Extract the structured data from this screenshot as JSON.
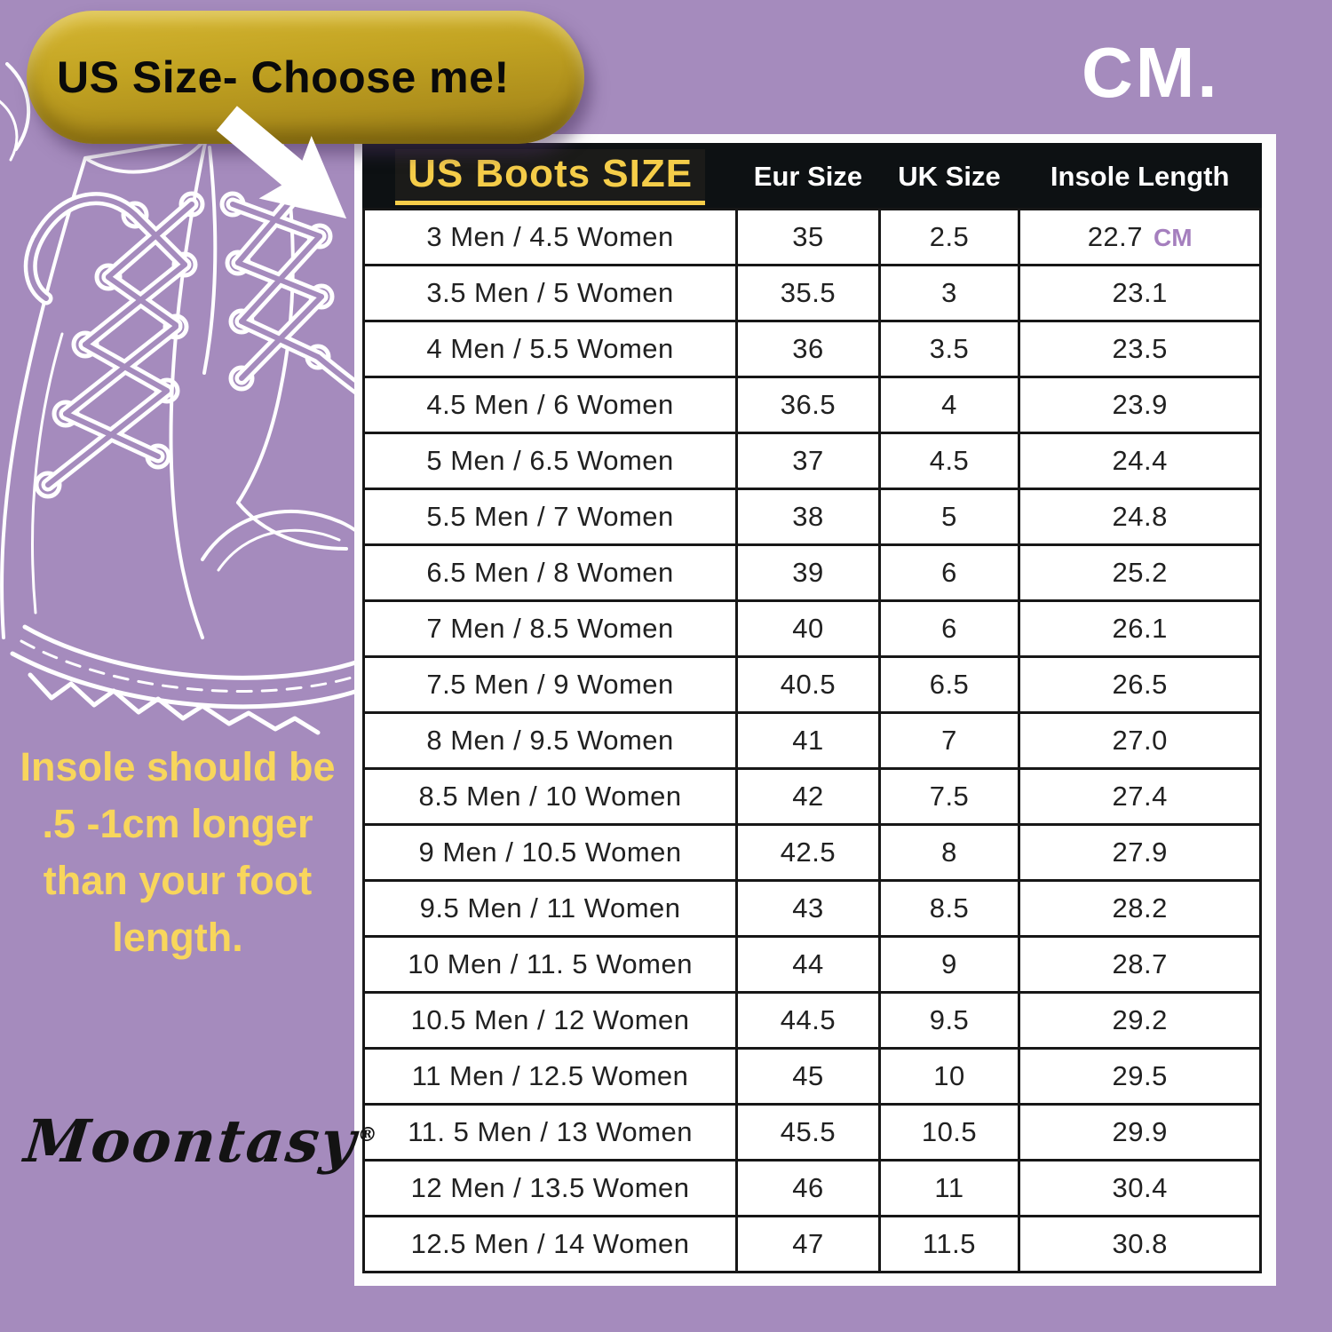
{
  "canvas": {
    "background_color": "#A58BBD"
  },
  "callout": {
    "label": "US Size- Choose me!",
    "bg_color": "#BC9C1D",
    "text_color": "#0A0A0A"
  },
  "unit_label": {
    "text": "CM."
  },
  "side_note": {
    "text": "Insole should be .5 -1cm longer than your foot length.",
    "color": "#F8D65C"
  },
  "brand": {
    "name": "Moontasy",
    "mark": "®"
  },
  "icons": {
    "arrow": "arrow-pointing-to-table-icon",
    "boots": "lace-up-boots-line-art"
  },
  "chart_data": {
    "type": "table",
    "title": "US Boots SIZE",
    "columns": [
      "US Boots SIZE",
      "Eur Size",
      "UK Size",
      "Insole Length"
    ],
    "first_row_unit": "CM",
    "rows": [
      [
        "3 Men / 4.5 Women",
        "35",
        "2.5",
        "22.7"
      ],
      [
        "3.5 Men / 5 Women",
        "35.5",
        "3",
        "23.1"
      ],
      [
        "4 Men / 5.5 Women",
        "36",
        "3.5",
        "23.5"
      ],
      [
        "4.5 Men / 6 Women",
        "36.5",
        "4",
        "23.9"
      ],
      [
        "5 Men / 6.5 Women",
        "37",
        "4.5",
        "24.4"
      ],
      [
        "5.5 Men / 7 Women",
        "38",
        "5",
        "24.8"
      ],
      [
        "6.5 Men / 8 Women",
        "39",
        "6",
        "25.2"
      ],
      [
        "7 Men / 8.5 Women",
        "40",
        "6",
        "26.1"
      ],
      [
        "7.5 Men / 9 Women",
        "40.5",
        "6.5",
        "26.5"
      ],
      [
        "8 Men / 9.5 Women",
        "41",
        "7",
        "27.0"
      ],
      [
        "8.5 Men / 10 Women",
        "42",
        "7.5",
        "27.4"
      ],
      [
        "9 Men / 10.5 Women",
        "42.5",
        "8",
        "27.9"
      ],
      [
        "9.5 Men / 11 Women",
        "43",
        "8.5",
        "28.2"
      ],
      [
        "10 Men / 11. 5 Women",
        "44",
        "9",
        "28.7"
      ],
      [
        "10.5 Men / 12 Women",
        "44.5",
        "9.5",
        "29.2"
      ],
      [
        "11 Men / 12.5 Women",
        "45",
        "10",
        "29.5"
      ],
      [
        "11. 5 Men / 13 Women",
        "45.5",
        "10.5",
        "29.9"
      ],
      [
        "12 Men / 13.5 Women",
        "46",
        "11",
        "30.4"
      ],
      [
        "12.5 Men / 14 Women",
        "47",
        "11.5",
        "30.8"
      ]
    ],
    "colors": {
      "header_bg": "#0D1113",
      "header_title": "#F5CD49",
      "header_text": "#FFFFFF",
      "cell_text": "#212121",
      "unit_accent": "#A57FBE"
    }
  }
}
